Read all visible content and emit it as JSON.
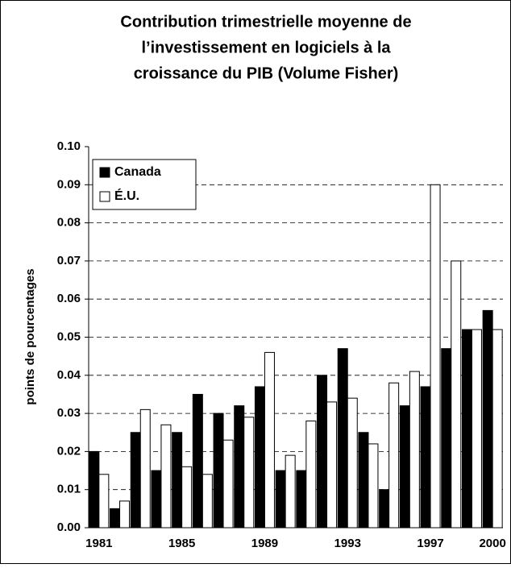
{
  "chart_data": {
    "type": "bar",
    "title": [
      "Contribution trimestrielle moyenne de",
      "l’investissement en logiciels à la",
      "croissance du PIB (Volume Fisher)"
    ],
    "y_label": "points de pourcentages",
    "categories": [
      "1981",
      null,
      null,
      null,
      "1985",
      null,
      null,
      null,
      "1989",
      null,
      null,
      null,
      "1993",
      null,
      null,
      null,
      "1997",
      null,
      null,
      "2000"
    ],
    "series": [
      {
        "name": "Canada",
        "color": "#000000",
        "values": [
          0.02,
          0.005,
          0.025,
          0.015,
          0.025,
          0.035,
          0.03,
          0.032,
          0.037,
          0.015,
          0.015,
          0.04,
          0.047,
          0.025,
          0.01,
          0.032,
          0.037,
          0.047,
          0.052,
          0.057
        ]
      },
      {
        "name": "É.U.",
        "color": "#ffffff",
        "values": [
          0.014,
          0.007,
          0.031,
          0.027,
          0.016,
          0.014,
          0.023,
          0.029,
          0.046,
          0.019,
          0.028,
          0.033,
          0.034,
          0.022,
          0.038,
          0.041,
          0.09,
          0.07,
          0.052,
          0.052
        ]
      }
    ],
    "ylim": [
      0,
      0.1
    ],
    "yticks": [
      {
        "value": 0,
        "label": "0.00"
      },
      {
        "value": 0.01,
        "label": "0.01"
      },
      {
        "value": 0.02,
        "label": "0.02"
      },
      {
        "value": 0.03,
        "label": "0.03"
      },
      {
        "value": 0.04,
        "label": "0.04"
      },
      {
        "value": 0.05,
        "label": "0.05"
      },
      {
        "value": 0.06,
        "label": "0.06"
      },
      {
        "value": 0.07,
        "label": "0.07"
      },
      {
        "value": 0.08,
        "label": "0.08"
      },
      {
        "value": 0.09,
        "label": "0.09"
      },
      {
        "value": 0.1,
        "label": "0.10"
      }
    ],
    "grid": true,
    "legend": "upper-left"
  }
}
